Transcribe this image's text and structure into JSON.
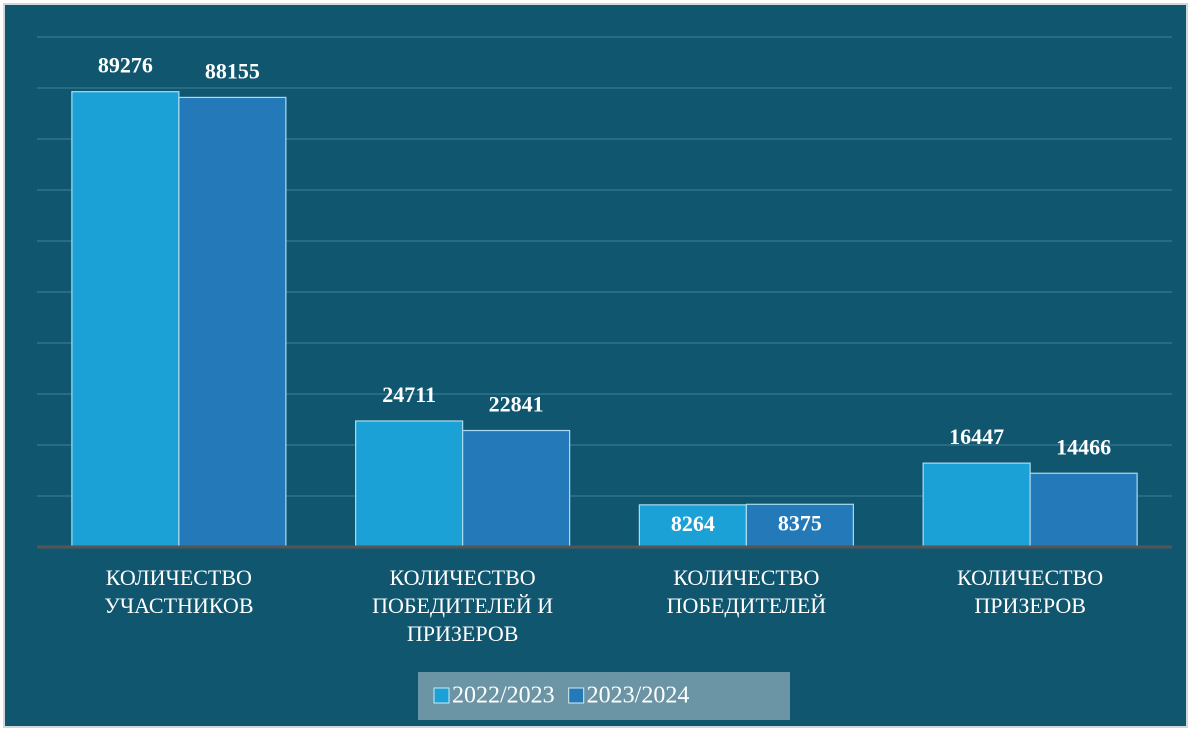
{
  "chart_data": {
    "type": "bar",
    "categories": [
      "КОЛИЧЕСТВО\nУЧАСТНИКОВ",
      "КОЛИЧЕСТВО\nПОБЕДИТЕЛЕЙ И\nПРИЗЕРОВ",
      "КОЛИЧЕСТВО\nПОБЕДИТЕЛЕЙ",
      "КОЛИЧЕСТВО\nПРИЗЕРОВ"
    ],
    "series": [
      {
        "name": "2022/2023",
        "color": "#1ba1d5",
        "values": [
          89276,
          24711,
          8264,
          16447
        ]
      },
      {
        "name": "2023/2024",
        "color": "#2479b9",
        "values": [
          88155,
          22841,
          8375,
          14466
        ]
      }
    ],
    "ylim": [
      0,
      100000
    ],
    "yticks": [
      0,
      10000,
      20000,
      30000,
      40000,
      50000,
      60000,
      70000,
      80000,
      90000,
      100000
    ],
    "grid": true,
    "legend": "bottom"
  }
}
